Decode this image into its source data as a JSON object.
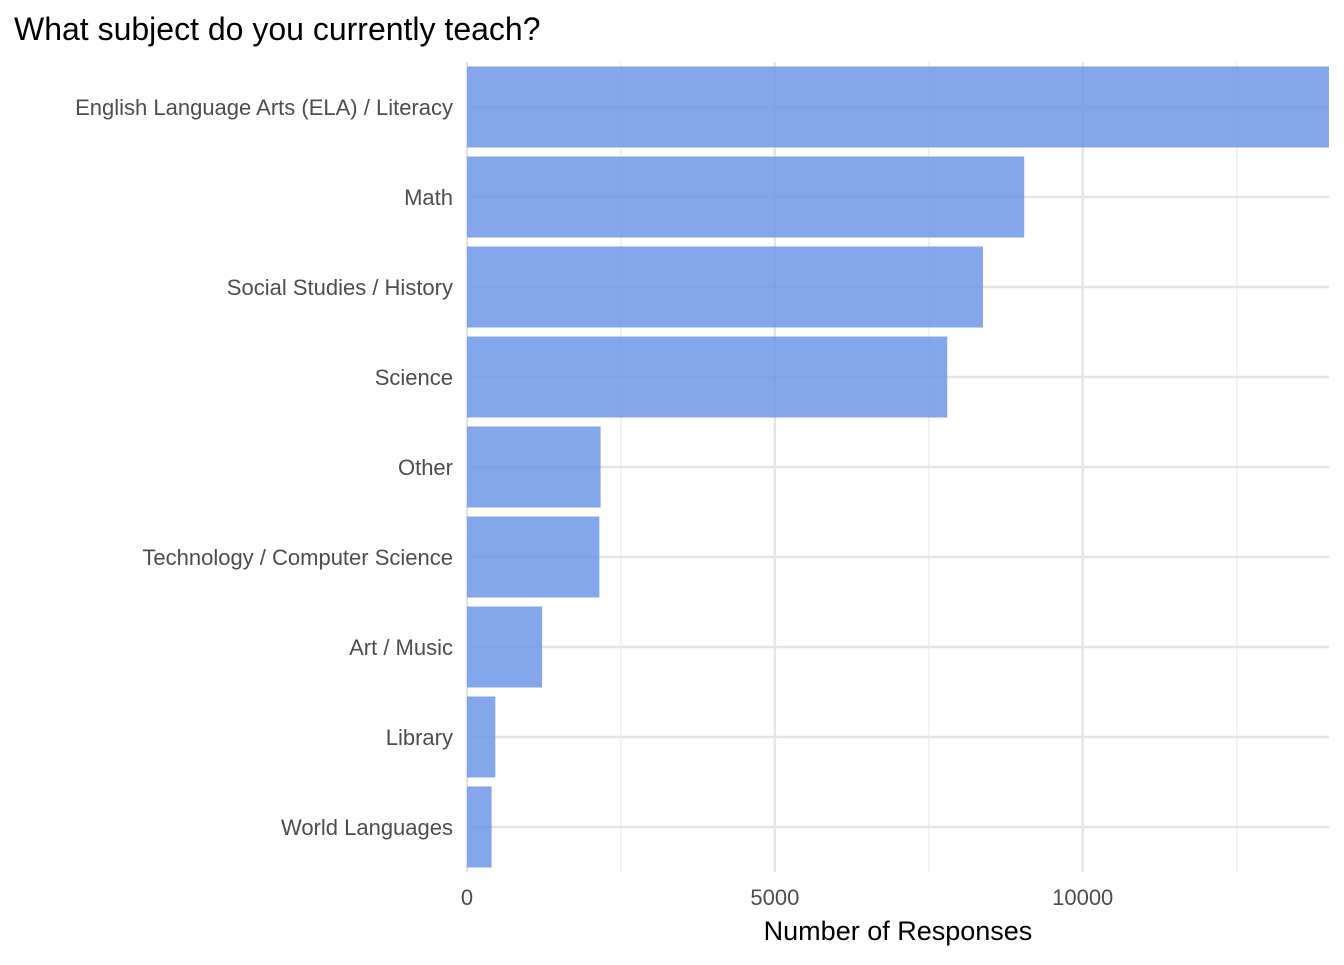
{
  "chart_data": {
    "type": "bar",
    "orientation": "horizontal",
    "title": "What subject do you currently teach?",
    "xlabel": "Number of Responses",
    "ylabel": "",
    "categories": [
      "English Language Arts (ELA) / Literacy",
      "Math",
      "Social Studies / History",
      "Science",
      "Other",
      "Technology / Computer Science",
      "Art / Music",
      "Library",
      "World Languages"
    ],
    "values": [
      14000,
      9050,
      8380,
      7800,
      2170,
      2150,
      1220,
      460,
      400
    ],
    "xlim": [
      0,
      14000
    ],
    "x_ticks": [
      0,
      5000,
      10000
    ],
    "x_tick_labels": [
      "0",
      "5000",
      "10000"
    ],
    "grid": true,
    "legend": "none",
    "colors": {
      "bar": "#6f96e8",
      "grid_major": "#e5e5e5",
      "grid_minor": "#efefef",
      "text": "#4d4d4d",
      "title": "#000000"
    }
  }
}
